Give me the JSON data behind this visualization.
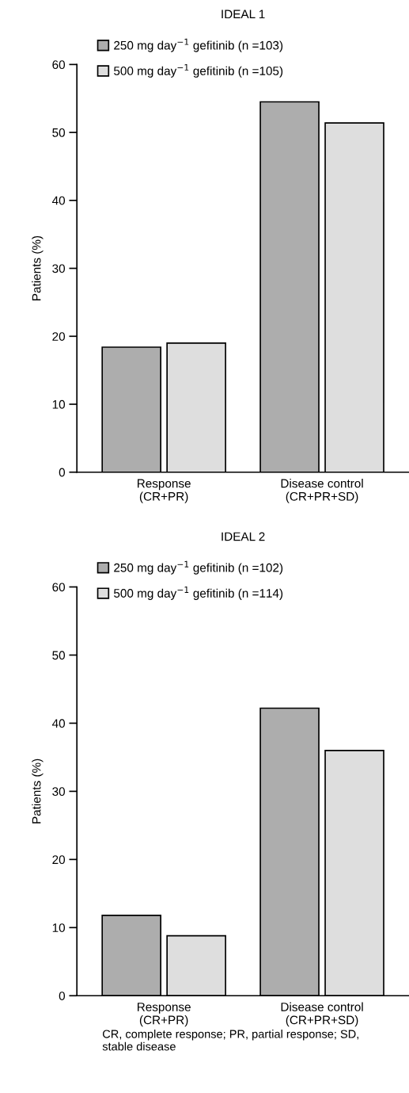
{
  "chart_data": [
    {
      "type": "bar",
      "title": "IDEAL 1",
      "ylabel": "Patients (%)",
      "categories": [
        "Response\n(CR+PR)",
        "Disease control\n(CR+PR+SD)"
      ],
      "series": [
        {
          "name": "250 mg day$^{−1}$ gefitinib (n =103)",
          "color": "#adadad",
          "values": [
            18.4,
            54.5
          ]
        },
        {
          "name": "500 mg day$^{−1}$ gefitinib (n =105)",
          "color": "#dedede",
          "values": [
            19.0,
            51.4
          ]
        }
      ],
      "ylim": [
        0,
        60
      ],
      "yticks": [
        0,
        10,
        20,
        30,
        40,
        50,
        60
      ],
      "legend": "top left",
      "grid": false
    },
    {
      "type": "bar",
      "title": "IDEAL 2",
      "ylabel": "Patients (%)",
      "categories": [
        "Response\n(CR+PR)",
        "Disease control\n(CR+PR+SD)"
      ],
      "series": [
        {
          "name": "250 mg day$^{−1}$ gefitinib (n =102)",
          "color": "#adadad",
          "values": [
            11.8,
            42.2
          ]
        },
        {
          "name": "500 mg day$^{−1}$ gefitinib (n =114)",
          "color": "#dedede",
          "values": [
            8.8,
            36.0
          ]
        }
      ],
      "ylim": [
        0,
        60
      ],
      "yticks": [
        0,
        10,
        20,
        30,
        40,
        50,
        60
      ],
      "legend": "top left",
      "grid": false,
      "annotations": [
        "CR, complete response; PR, partial response; SD, stable disease"
      ]
    }
  ]
}
